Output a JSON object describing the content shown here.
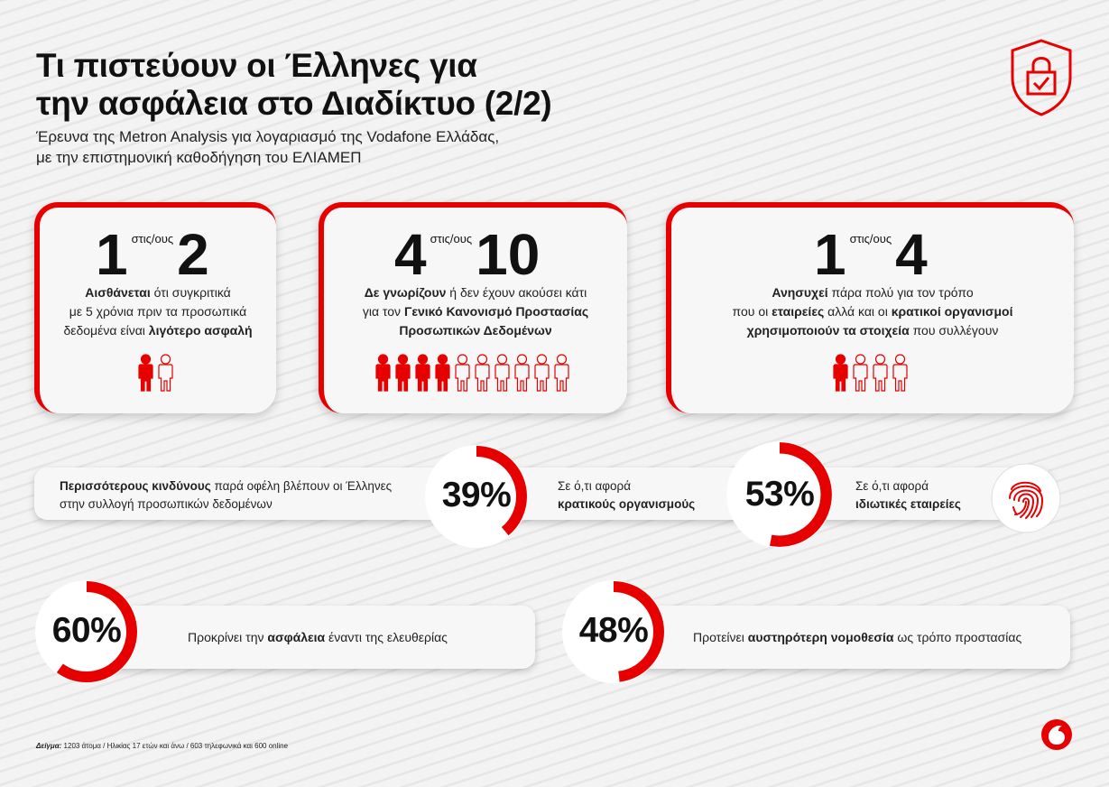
{
  "title": {
    "line1": "Τι πιστεύουν οι Έλληνες για",
    "line2": "την ασφάλεια στο Διαδίκτυο (2/2)"
  },
  "subtitle": {
    "line1": "Έρευνα της Metron Analysis για λογαριασμό της Vodafone Ελλάδας,",
    "line2": "με την επιστημονική καθοδήγηση του ΕΛΙΑΜΕΠ"
  },
  "cards": [
    {
      "num": "1",
      "connector": "στις/ους",
      "den": "2",
      "lines": [
        [
          {
            "t": "Αισθάνεται",
            "b": true
          },
          {
            "t": " ότι συγκριτικά",
            "b": false
          }
        ],
        [
          {
            "t": "με 5 χρόνια πριν τα προσωπικά",
            "b": false
          }
        ],
        [
          {
            "t": "δεδομένα είναι ",
            "b": false
          },
          {
            "t": "λιγότερο ασφαλή",
            "b": true
          }
        ]
      ],
      "filled": 1,
      "total": 2
    },
    {
      "num": "4",
      "connector": "στις/ους",
      "den": "10",
      "lines": [
        [
          {
            "t": "Δε γνωρίζουν",
            "b": true
          },
          {
            "t": " ή δεν έχουν ακούσει κάτι",
            "b": false
          }
        ],
        [
          {
            "t": "για τον ",
            "b": false
          },
          {
            "t": "Γενικό Κανονισμό Προστασίας",
            "b": true
          }
        ],
        [
          {
            "t": "Προσωπικών Δεδομένων",
            "b": true
          }
        ]
      ],
      "filled": 4,
      "total": 10
    },
    {
      "num": "1",
      "connector": "στις/ους",
      "den": "4",
      "lines": [
        [
          {
            "t": "Ανησυχεί",
            "b": true
          },
          {
            "t": " πάρα πολύ για τον τρόπο",
            "b": false
          }
        ],
        [
          {
            "t": "που οι ",
            "b": false
          },
          {
            "t": "εταιρείες",
            "b": true
          },
          {
            "t": " αλλά και οι ",
            "b": false
          },
          {
            "t": "κρατικοί οργανισμοί",
            "b": true
          }
        ],
        [
          {
            "t": "χρησιμοποιούν τα στοιχεία",
            "b": true
          },
          {
            "t": " που συλλέγουν",
            "b": false
          }
        ]
      ],
      "filled": 1,
      "total": 4
    }
  ],
  "risk": {
    "lead_bold": "Περισσότερους κινδύνους",
    "lead_rest": " παρά οφέλη βλέπουν οι Έλληνες",
    "lead_line2": "στην συλλογή προσωπικών δεδομένων",
    "state": {
      "value_label": "39%",
      "value": 39,
      "line1": "Σε ό,τι αφορά",
      "line2_bold": "κρατικούς οργανισμούς"
    },
    "private": {
      "value_label": "53%",
      "value": 53,
      "line1": "Σε ό,τι αφορά",
      "line2_bold": "ιδιωτικές εταιρείες"
    }
  },
  "bottom": [
    {
      "value_label": "60%",
      "value": 60,
      "pre": "Προκρίνει την ",
      "bold": "ασφάλεια",
      "post": " έναντι της ελευθερίας"
    },
    {
      "value_label": "48%",
      "value": 48,
      "pre": "Προτείνει ",
      "bold": "αυστηρότερη νομοθεσία",
      "post": " ως τρόπο προστασίας"
    }
  ],
  "footer": {
    "label": "Δείγμα:",
    "text": " 1203 άτομα  /  Ηλικίας 17 ετών και άνω  /  603 τηλεφωνικά και 600 online"
  },
  "colors": {
    "accent": "#e60000",
    "ring_bg": "#ffffff",
    "text": "#1a1a1a"
  },
  "icons": [
    "shield-lock-icon",
    "person-icon",
    "fingerprint-icon",
    "vodafone-logo-icon"
  ]
}
